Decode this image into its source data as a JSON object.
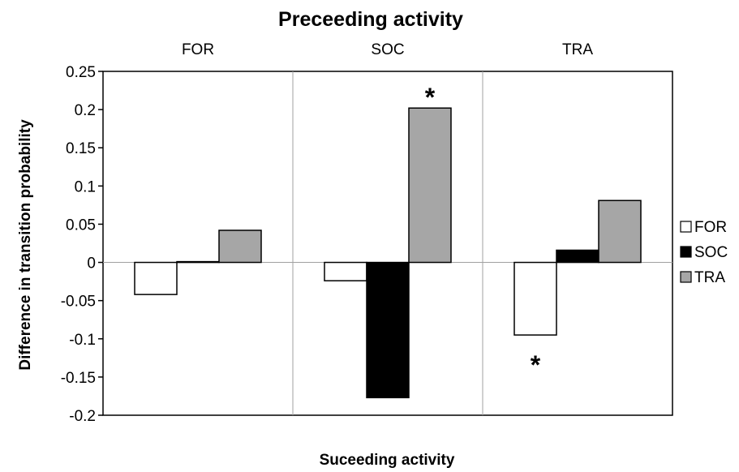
{
  "chart_data": {
    "type": "bar",
    "title": "Preceeding activity",
    "xlabel": "Suceeding activity",
    "ylabel": "Difference in transition probability",
    "categories": [
      "FOR",
      "SOC",
      "TRA"
    ],
    "series": [
      {
        "name": "FOR",
        "values": [
          -0.042,
          -0.024,
          -0.095
        ],
        "color": "#ffffff"
      },
      {
        "name": "SOC",
        "values": [
          0.001,
          -0.177,
          0.016
        ],
        "color": "#000000"
      },
      {
        "name": "TRA",
        "values": [
          0.042,
          0.202,
          0.081
        ],
        "color": "#a6a6a6"
      }
    ],
    "ylim": [
      -0.2,
      0.25
    ],
    "yticks": [
      0.25,
      0.2,
      0.15,
      0.1,
      0.05,
      0,
      -0.05,
      -0.1,
      -0.15,
      -0.2
    ],
    "ytick_labels": [
      "0.25",
      "0.2",
      "0.15",
      "0.1",
      "0.05",
      "0",
      "-0.05",
      "-0.1",
      "-0.15",
      "-0.2"
    ],
    "annotations": [
      {
        "text": "*",
        "category": "SOC",
        "series": "TRA",
        "position": "above"
      },
      {
        "text": "*",
        "category": "TRA",
        "series": "FOR",
        "position": "below"
      }
    ],
    "legend": {
      "position": "right",
      "entries": [
        "FOR",
        "SOC",
        "TRA"
      ]
    },
    "grid": false,
    "group_dividers": true
  }
}
